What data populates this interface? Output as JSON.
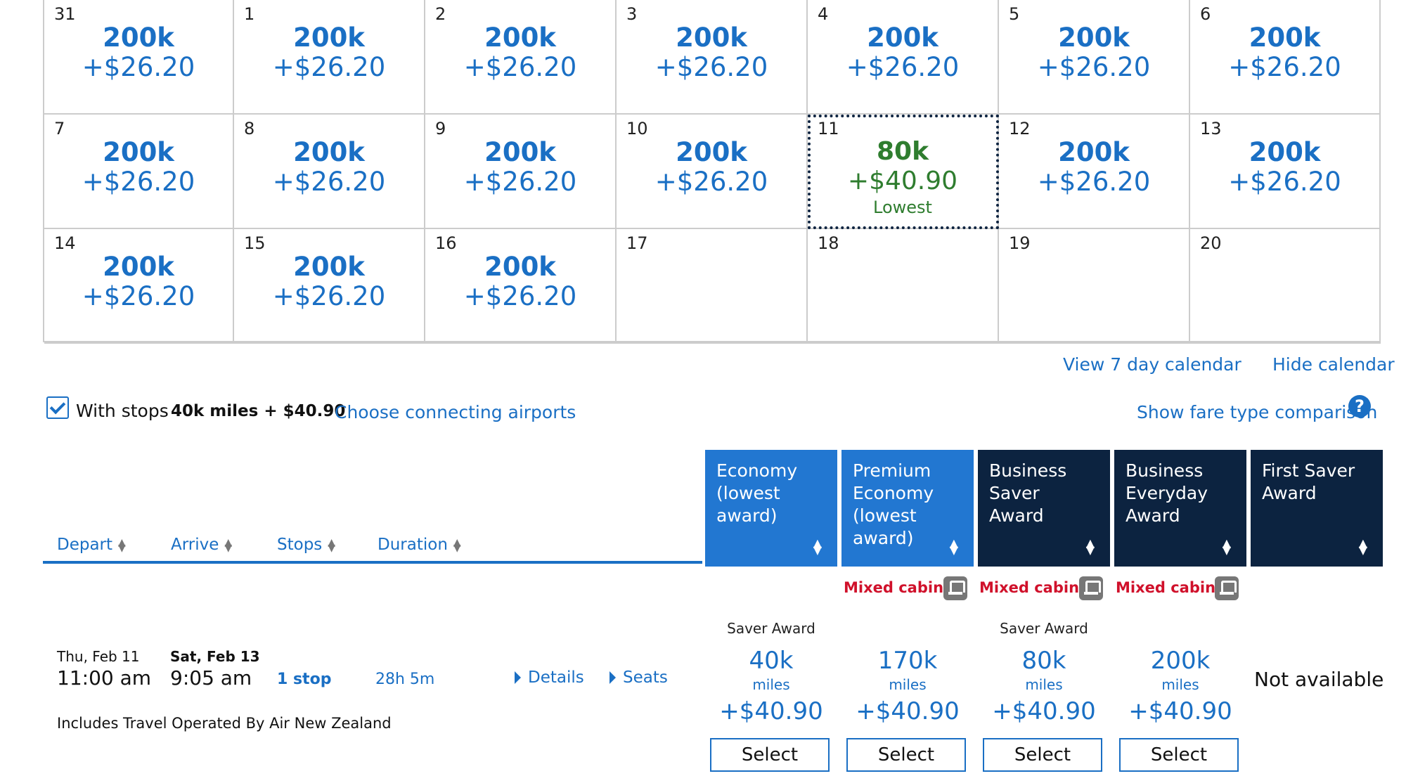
{
  "calendar": {
    "rows": [
      [
        {
          "day": "31",
          "miles": "200k",
          "price": "+$26.20"
        },
        {
          "day": "1",
          "miles": "200k",
          "price": "+$26.20"
        },
        {
          "day": "2",
          "miles": "200k",
          "price": "+$26.20"
        },
        {
          "day": "3",
          "miles": "200k",
          "price": "+$26.20"
        },
        {
          "day": "4",
          "miles": "200k",
          "price": "+$26.20"
        },
        {
          "day": "5",
          "miles": "200k",
          "price": "+$26.20"
        },
        {
          "day": "6",
          "miles": "200k",
          "price": "+$26.20"
        }
      ],
      [
        {
          "day": "7",
          "miles": "200k",
          "price": "+$26.20"
        },
        {
          "day": "8",
          "miles": "200k",
          "price": "+$26.20"
        },
        {
          "day": "9",
          "miles": "200k",
          "price": "+$26.20"
        },
        {
          "day": "10",
          "miles": "200k",
          "price": "+$26.20"
        },
        {
          "day": "11",
          "miles": "80k",
          "price": "+$40.90",
          "note": "Lowest",
          "lowest": true
        },
        {
          "day": "12",
          "miles": "200k",
          "price": "+$26.20"
        },
        {
          "day": "13",
          "miles": "200k",
          "price": "+$26.20"
        }
      ],
      [
        {
          "day": "14",
          "miles": "200k",
          "price": "+$26.20"
        },
        {
          "day": "15",
          "miles": "200k",
          "price": "+$26.20"
        },
        {
          "day": "16",
          "miles": "200k",
          "price": "+$26.20"
        },
        {
          "day": "17"
        },
        {
          "day": "18"
        },
        {
          "day": "19"
        },
        {
          "day": "20"
        }
      ]
    ],
    "view7_label": "View 7 day calendar",
    "hide_label": "Hide calendar"
  },
  "options": {
    "with_stops_label": "With stops",
    "with_stops_checked": true,
    "stops_price": "40k miles + $40.90",
    "connecting_label": "Choose connecting airports",
    "comparison_label": "Show fare type comparison",
    "help_glyph": "?"
  },
  "sort_headers": [
    "Depart",
    "Arrive",
    "Stops",
    "Duration"
  ],
  "fare_columns": [
    {
      "label": "Economy (lowest award)",
      "style": "light"
    },
    {
      "label": "Premium Economy (lowest award)",
      "style": "light"
    },
    {
      "label": "Business Saver Award",
      "style": "dark"
    },
    {
      "label": "Business Everyday Award",
      "style": "dark"
    },
    {
      "label": "First Saver Award",
      "style": "dark"
    }
  ],
  "mixed_cabin_label": "Mixed cabin",
  "flight": {
    "depart_date": "Thu, Feb 11",
    "depart_time": "11:00 am",
    "arrive_date": "Sat, Feb 13",
    "arrive_time": "9:05 am",
    "stops": "1 stop",
    "duration": "28h 5m",
    "details_label": "Details",
    "seats_label": "Seats",
    "operated_by": "Includes Travel Operated By Air New Zealand",
    "fares": [
      {
        "award_type": "Saver Award",
        "miles": "40k",
        "unit": "miles",
        "price": "+$40.90",
        "button": "Select"
      },
      {
        "award_type": "",
        "miles": "170k",
        "unit": "miles",
        "price": "+$40.90",
        "button": "Select"
      },
      {
        "award_type": "Saver Award",
        "miles": "80k",
        "unit": "miles",
        "price": "+$40.90",
        "button": "Select"
      },
      {
        "award_type": "",
        "miles": "200k",
        "unit": "miles",
        "price": "+$40.90",
        "button": "Select"
      }
    ],
    "first_not_available": "Not available"
  },
  "colors": {
    "accent": "#1a6fc4",
    "navy": "#0c2340",
    "lowest_green": "#2f7d2f",
    "mixed_red": "#d0112b"
  }
}
